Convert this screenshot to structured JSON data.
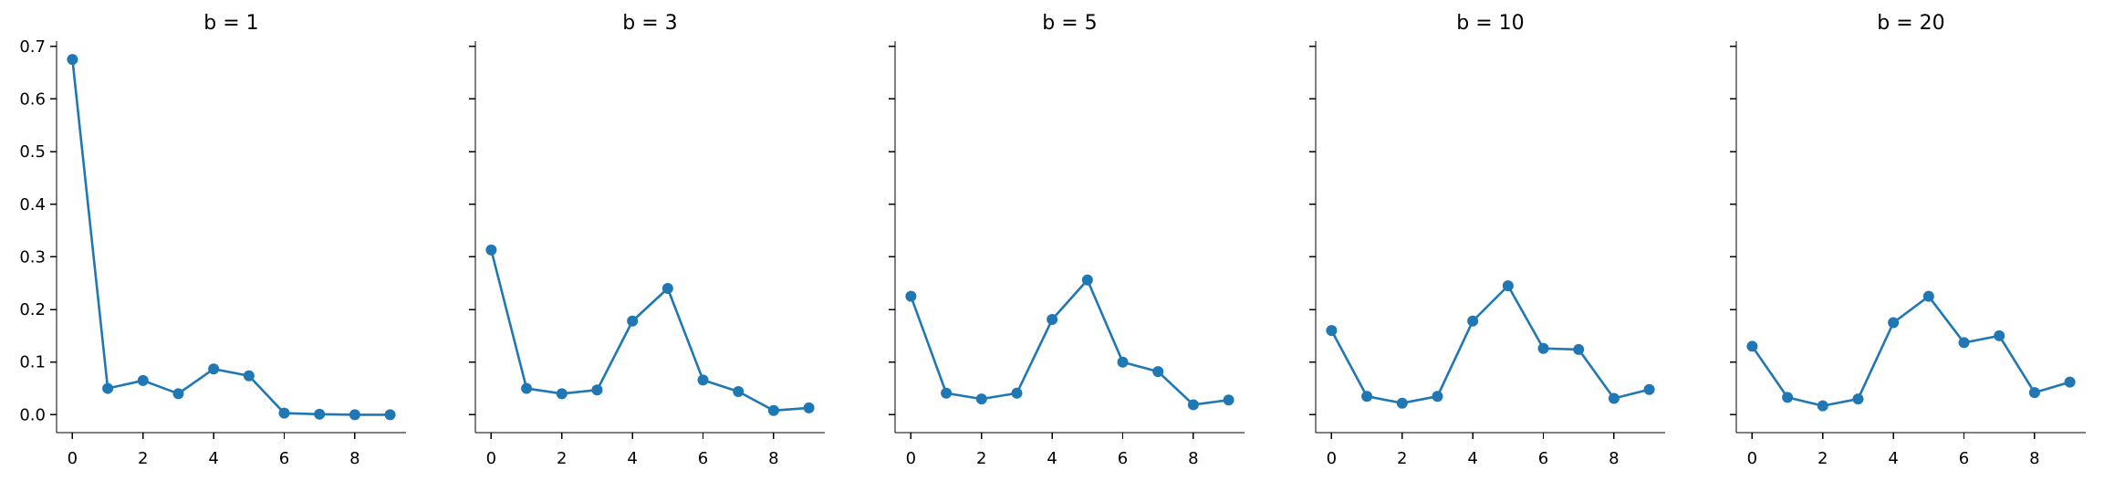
{
  "chart_data": [
    {
      "type": "line",
      "title": "b = 1",
      "x": [
        0,
        1,
        2,
        3,
        4,
        5,
        6,
        7,
        8,
        9
      ],
      "values": [
        0.675,
        0.05,
        0.065,
        0.04,
        0.087,
        0.074,
        0.003,
        0.001,
        0.0,
        0.0
      ],
      "xlim": [
        -0.45,
        9.45
      ],
      "ylim": [
        -0.034,
        0.71
      ],
      "xticks": [
        "0",
        "2",
        "4",
        "6",
        "8"
      ],
      "yticks": [
        "0.0",
        "0.1",
        "0.2",
        "0.3",
        "0.4",
        "0.5",
        "0.6",
        "0.7"
      ],
      "grid": false
    },
    {
      "type": "line",
      "title": "b = 3",
      "x": [
        0,
        1,
        2,
        3,
        4,
        5,
        6,
        7,
        8,
        9
      ],
      "values": [
        0.313,
        0.05,
        0.04,
        0.047,
        0.178,
        0.24,
        0.066,
        0.044,
        0.008,
        0.013
      ],
      "xlim": [
        -0.45,
        9.45
      ],
      "ylim": [
        -0.034,
        0.71
      ],
      "xticks": [
        "0",
        "2",
        "4",
        "6",
        "8"
      ],
      "yticks": [],
      "grid": false
    },
    {
      "type": "line",
      "title": "b = 5",
      "x": [
        0,
        1,
        2,
        3,
        4,
        5,
        6,
        7,
        8,
        9
      ],
      "values": [
        0.225,
        0.041,
        0.03,
        0.041,
        0.181,
        0.256,
        0.1,
        0.082,
        0.019,
        0.028
      ],
      "xlim": [
        -0.45,
        9.45
      ],
      "ylim": [
        -0.034,
        0.71
      ],
      "xticks": [
        "0",
        "2",
        "4",
        "6",
        "8"
      ],
      "yticks": [],
      "grid": false
    },
    {
      "type": "line",
      "title": "b = 10",
      "x": [
        0,
        1,
        2,
        3,
        4,
        5,
        6,
        7,
        8,
        9
      ],
      "values": [
        0.16,
        0.035,
        0.022,
        0.035,
        0.178,
        0.245,
        0.126,
        0.124,
        0.031,
        0.048
      ],
      "xlim": [
        -0.45,
        9.45
      ],
      "ylim": [
        -0.034,
        0.71
      ],
      "xticks": [
        "0",
        "2",
        "4",
        "6",
        "8"
      ],
      "yticks": [],
      "grid": false
    },
    {
      "type": "line",
      "title": "b = 20",
      "x": [
        0,
        1,
        2,
        3,
        4,
        5,
        6,
        7,
        8,
        9
      ],
      "values": [
        0.13,
        0.033,
        0.017,
        0.03,
        0.175,
        0.225,
        0.137,
        0.15,
        0.042,
        0.062
      ],
      "xlim": [
        -0.45,
        9.45
      ],
      "ylim": [
        -0.034,
        0.71
      ],
      "xticks": [
        "0",
        "2",
        "4",
        "6",
        "8"
      ],
      "yticks": [],
      "grid": false
    }
  ],
  "style": {
    "series_color": "#1f77b4",
    "axis_color": "#000000"
  }
}
